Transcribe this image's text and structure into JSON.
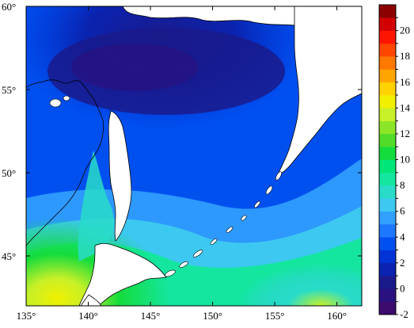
{
  "map": {
    "lon_range": [
      135,
      162
    ],
    "lat_range": [
      42,
      60
    ],
    "lon_ticks": [
      {
        "value": 135,
        "label": "135°"
      },
      {
        "value": 140,
        "label": "140°"
      },
      {
        "value": 145,
        "label": "145°"
      },
      {
        "value": 150,
        "label": "150°"
      },
      {
        "value": 155,
        "label": "155°"
      },
      {
        "value": 160,
        "label": "160°"
      }
    ],
    "lat_ticks": [
      {
        "value": 60,
        "label": "60°"
      },
      {
        "value": 55,
        "label": "55°"
      },
      {
        "value": 50,
        "label": "50°"
      },
      {
        "value": 45,
        "label": "45°"
      }
    ],
    "land_color": "#ffffff",
    "coastline_color": "#000000"
  },
  "colorbar": {
    "levels": [
      {
        "value": -2,
        "label": "-2",
        "color": "#3d0a6e"
      },
      {
        "value": -1,
        "label": "",
        "color": "#2a1180"
      },
      {
        "value": 0,
        "label": "0",
        "color": "#1a1a8c"
      },
      {
        "value": 1,
        "label": "",
        "color": "#0a23b0"
      },
      {
        "value": 2,
        "label": "2",
        "color": "#0033d6"
      },
      {
        "value": 3,
        "label": "",
        "color": "#0050f0"
      },
      {
        "value": 4,
        "label": "4",
        "color": "#1e78ff"
      },
      {
        "value": 5,
        "label": "",
        "color": "#32a0ff"
      },
      {
        "value": 6,
        "label": "6",
        "color": "#3cc8f0"
      },
      {
        "value": 7,
        "label": "",
        "color": "#28dcc8"
      },
      {
        "value": 8,
        "label": "8",
        "color": "#14e6a0"
      },
      {
        "value": 9,
        "label": "",
        "color": "#00e678"
      },
      {
        "value": 10,
        "label": "10",
        "color": "#14dc3c"
      },
      {
        "value": 11,
        "label": "",
        "color": "#50dc28"
      },
      {
        "value": 12,
        "label": "12",
        "color": "#8ce628"
      },
      {
        "value": 13,
        "label": "",
        "color": "#c8f028"
      },
      {
        "value": 14,
        "label": "14",
        "color": "#f0f000"
      },
      {
        "value": 15,
        "label": "",
        "color": "#ffd200"
      },
      {
        "value": 16,
        "label": "16",
        "color": "#ffa500"
      },
      {
        "value": 17,
        "label": "",
        "color": "#ff7800"
      },
      {
        "value": 18,
        "label": "18",
        "color": "#ff4600"
      },
      {
        "value": 19,
        "label": "",
        "color": "#ff1400"
      },
      {
        "value": 20,
        "label": "20",
        "color": "#d20000"
      },
      {
        "value": 21,
        "label": "",
        "color": "#8c0000"
      }
    ]
  }
}
